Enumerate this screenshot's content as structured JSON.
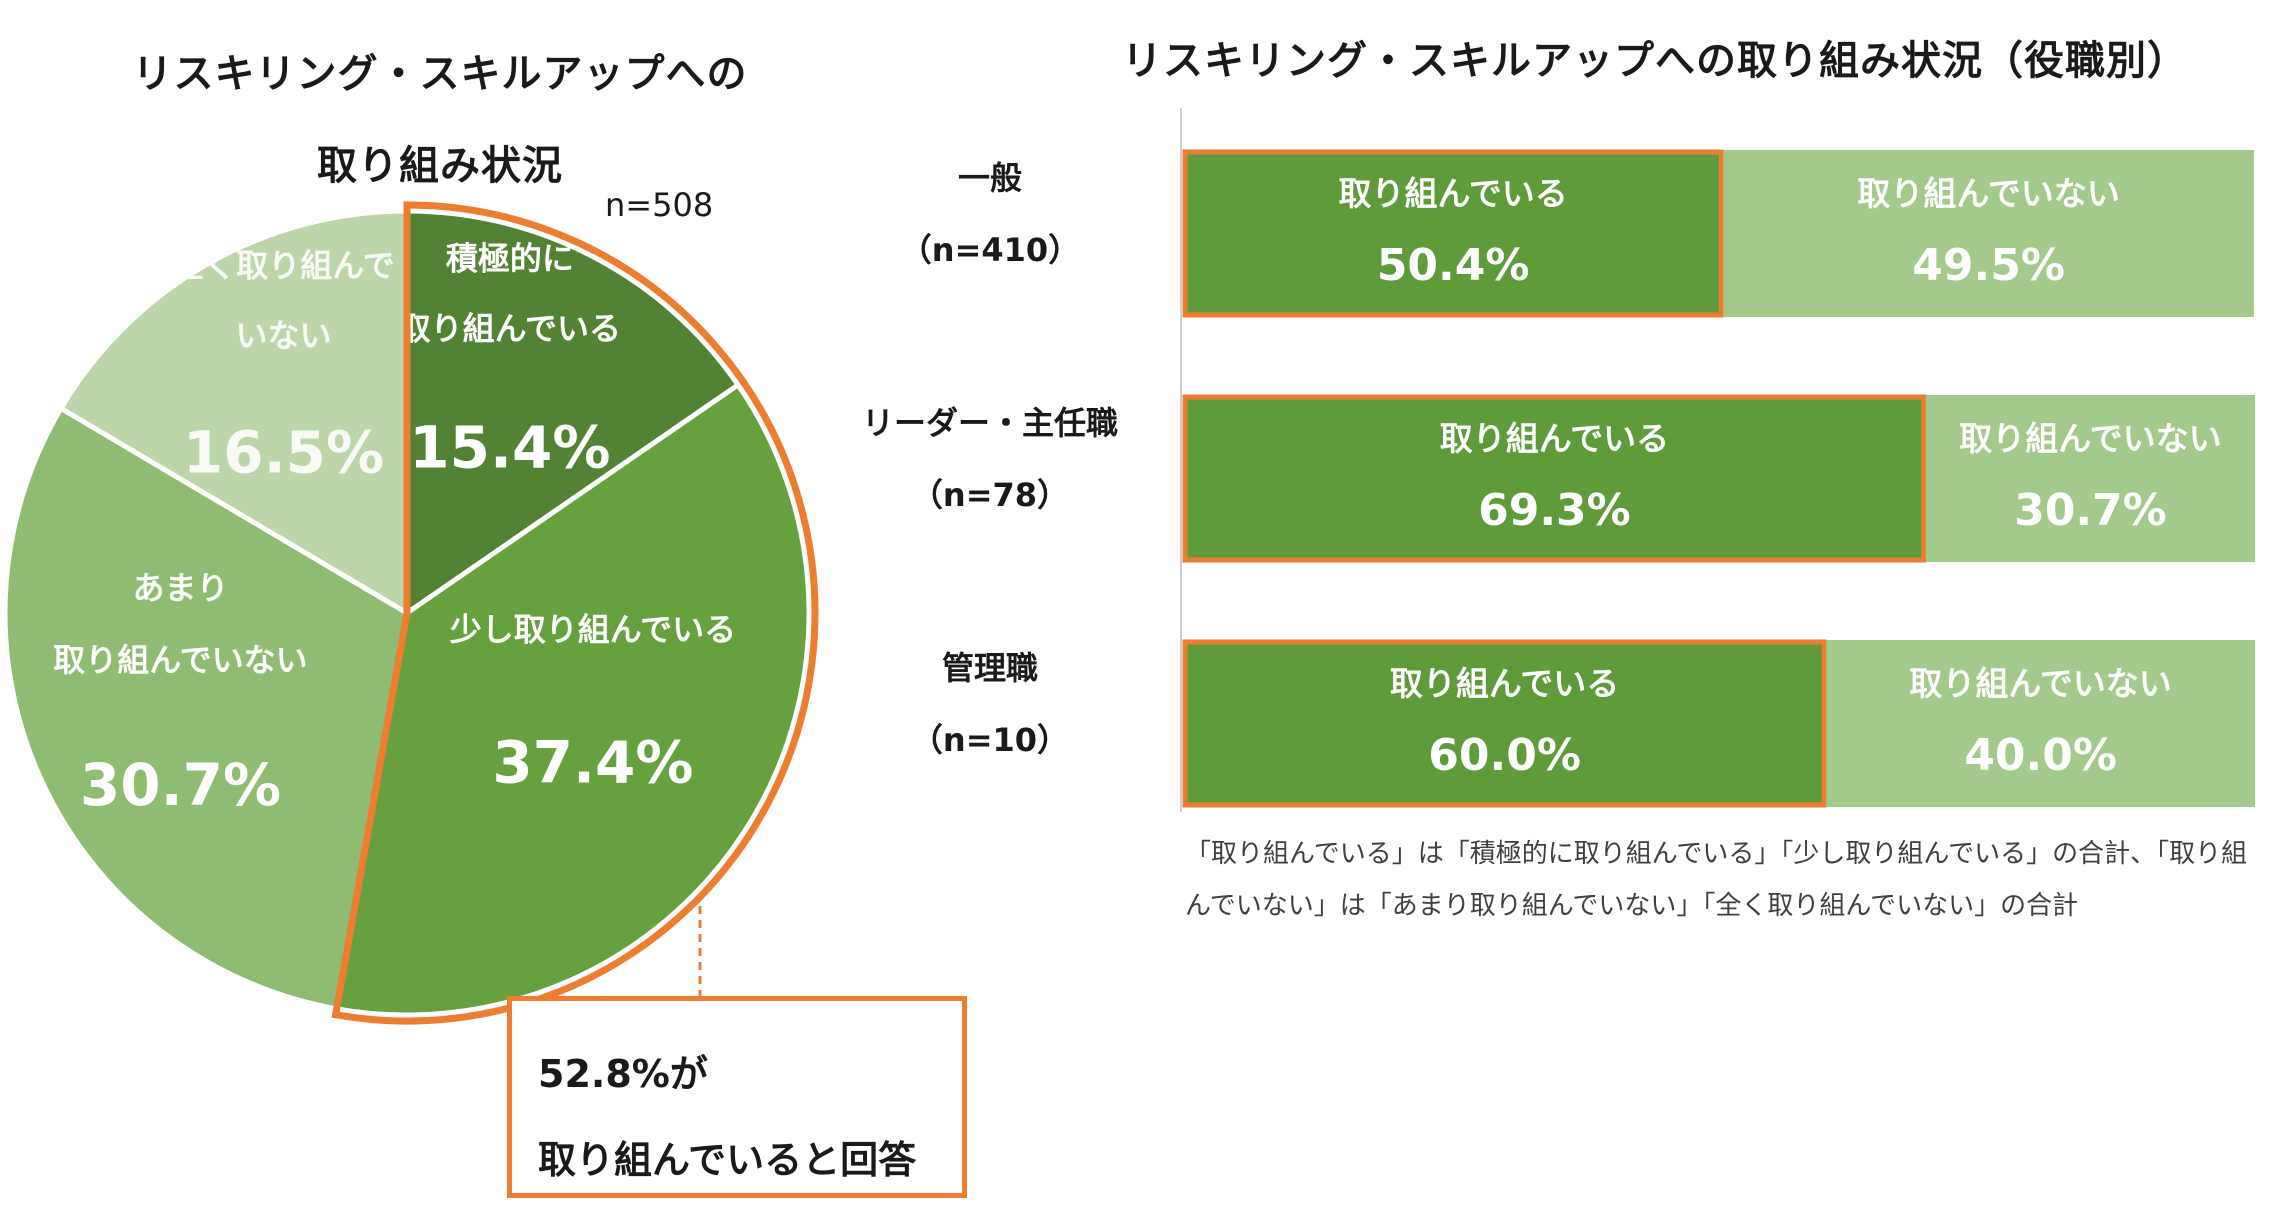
{
  "pie": {
    "title_line1": "リスキリング・スキルアップへの",
    "title_line2": "取り組み状況",
    "n_label": "n=508"
  },
  "bar": {
    "title": "リスキリング・スキルアップへの取り組み状況（役職別）"
  },
  "callout": {
    "line1": "52.8%が",
    "line2": "取り組んでいると回答"
  },
  "note": "「取り組んでいる」は「積極的に取り組んでいる」「少し取り組んでいる」の合計、「取り組んでいない」は「あまり取り組んでいない」「全く取り組んでいない」の合計",
  "colors": {
    "dark_green": "#548235",
    "mid_green": "#66a03f",
    "light_green": "#8fbb72",
    "pale_green": "#bcd5ab",
    "bar_dark": "#5f9b3a",
    "bar_light": "#a4c98d",
    "highlight": "#ed7d31"
  },
  "chart_data": [
    {
      "type": "pie",
      "title": "リスキリング・スキルアップへの取り組み状況",
      "n": "n=508",
      "slices": [
        {
          "name": "積極的に取り組んでいる",
          "line1": "積極的に",
          "line2": "取り組んでいる",
          "value": 15.4,
          "label": "15.4%",
          "color": "#548235",
          "highlight": true
        },
        {
          "name": "少し取り組んでいる",
          "line1": "少し取り組んでいる",
          "line2": "",
          "value": 37.4,
          "label": "37.4%",
          "color": "#66a03f",
          "highlight": true
        },
        {
          "name": "あまり取り組んでいない",
          "line1": "あまり",
          "line2": "取り組んでいない",
          "value": 30.7,
          "label": "30.7%",
          "color": "#8fbb72",
          "highlight": false
        },
        {
          "name": "全く取り組んでいない",
          "line1": "全く取り組んで",
          "line2": "いない",
          "value": 16.5,
          "label": "16.5%",
          "color": "#bcd5ab",
          "highlight": false
        }
      ]
    },
    {
      "type": "bar",
      "orientation": "horizontal",
      "stacked": true,
      "title": "リスキリング・スキルアップへの取り組み状況（役職別）",
      "categories": [
        {
          "name": "一般",
          "n": "（n=410）"
        },
        {
          "name": "リーダー・主任職",
          "n": "（n=78）"
        },
        {
          "name": "管理職",
          "n": "（n=10）"
        }
      ],
      "series": [
        {
          "name": "取り組んでいる",
          "values": [
            50.4,
            69.3,
            60.0
          ],
          "labels": [
            "50.4%",
            "69.3%",
            "60.0%"
          ],
          "color": "#5f9b3a"
        },
        {
          "name": "取り組んでいない",
          "values": [
            49.5,
            30.7,
            40.0
          ],
          "labels": [
            "49.5%",
            "30.7%",
            "40.0%"
          ],
          "color": "#a4c98d"
        }
      ],
      "xlim": [
        0,
        100
      ]
    }
  ]
}
